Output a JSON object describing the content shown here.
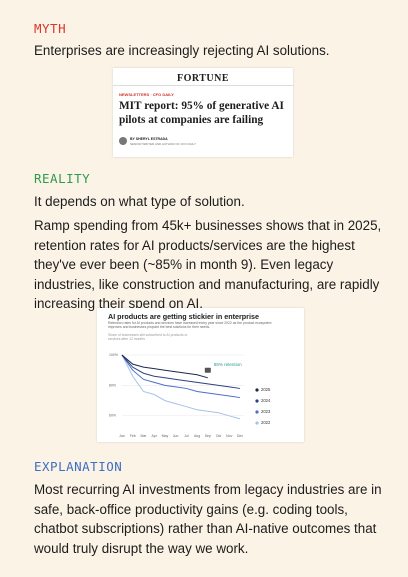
{
  "myth": {
    "label": "MYTH",
    "text": "Enterprises are increasingly rejecting AI solutions."
  },
  "article": {
    "publication": "FORTUNE",
    "section": "NEWSLETTERS · CFO DAILY",
    "headline": "MIT report: 95% of generative AI pilots at companies are failing",
    "byline": "BY SHERYL ESTRADA",
    "byline_role": "SENIOR WRITER AND AUTHOR OF CFO DAILY"
  },
  "reality": {
    "label": "REALITY",
    "text": "It depends on what type of solution.",
    "paragraph": "Ramp spending from 45k+ businesses shows that in 2025, retention rates for AI products/services are the highest they've ever been (~85% in month 9). Even legacy industries, like construction and manufacturing, are rapidly increasing their spend on AI."
  },
  "chart_data": {
    "type": "line",
    "title": "AI products are getting stickier in enterprise",
    "subtitle": "Retention rates for AI products and services have increased every year since 2022 as the product ecosystem improves and businesses pinpoint the best solutions for their needs.",
    "y_label": "Share of businesses still subscribed to AI products or services after 12 months",
    "annotation": "85% retention",
    "categories": [
      "Jan",
      "Feb",
      "Mar",
      "Apr",
      "May",
      "Jun",
      "Jul",
      "Aug",
      "Sep",
      "Oct",
      "Nov",
      "Dec"
    ],
    "series": [
      {
        "name": "2025",
        "color": "#1b2a4a",
        "values": [
          100,
          94,
          92,
          91,
          90,
          89,
          88,
          87,
          85,
          null,
          null,
          null
        ]
      },
      {
        "name": "2024",
        "color": "#2c4280",
        "values": [
          100,
          92,
          88,
          86,
          85,
          84,
          83,
          82,
          81,
          80,
          79,
          78
        ]
      },
      {
        "name": "2023",
        "color": "#4a70c8",
        "values": [
          100,
          90,
          84,
          82,
          80,
          79,
          78,
          76,
          75,
          74,
          73,
          72
        ]
      },
      {
        "name": "2022",
        "color": "#a9c0ec",
        "values": [
          100,
          86,
          76,
          74,
          70,
          68,
          66,
          64,
          63,
          62,
          60,
          58
        ]
      }
    ],
    "ylim": [
      50,
      100
    ],
    "yticks": [
      {
        "value": 60,
        "label": "60%"
      },
      {
        "value": 80,
        "label": "80%"
      },
      {
        "value": 100,
        "label": "100%"
      }
    ],
    "grid": true
  },
  "explanation": {
    "label": "EXPLANATION",
    "paragraph": "Most recurring AI investments from legacy industries are in safe, back-office productivity gains (e.g. coding tools, chatbot subscriptions) rather than AI-native outcomes that would truly disrupt the way we work."
  }
}
